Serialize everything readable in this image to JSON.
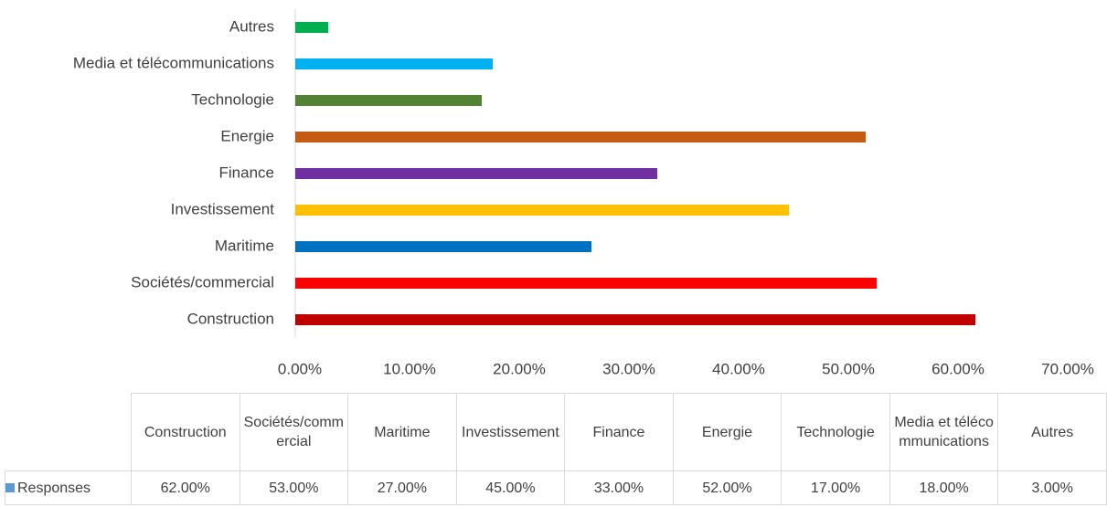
{
  "chart_data": {
    "type": "bar",
    "orientation": "horizontal",
    "categories": [
      "Construction",
      "Sociétés/commercial",
      "Maritime",
      "Investissement",
      "Finance",
      "Energie",
      "Technologie",
      "Media et télécommunications",
      "Autres"
    ],
    "series": [
      {
        "name": "Responses",
        "color": "#5b9bd5",
        "values": [
          62,
          53,
          27,
          45,
          33,
          52,
          17,
          18,
          3
        ],
        "value_labels": [
          "62.00%",
          "53.00%",
          "27.00%",
          "45.00%",
          "33.00%",
          "52.00%",
          "17.00%",
          "18.00%",
          "3.00%"
        ],
        "colors": [
          "#c00000",
          "#ff0000",
          "#0070c0",
          "#ffc000",
          "#7030a0",
          "#c55a11",
          "#548235",
          "#00b0f0",
          "#00b050"
        ]
      }
    ],
    "xlim": [
      0,
      70
    ],
    "xticks": [
      {
        "value": 0,
        "label": "0.00%"
      },
      {
        "value": 10,
        "label": "10.00%"
      },
      {
        "value": 20,
        "label": "20.00%"
      },
      {
        "value": 30,
        "label": "30.00%"
      },
      {
        "value": 40,
        "label": "40.00%"
      },
      {
        "value": 50,
        "label": "50.00%"
      },
      {
        "value": 60,
        "label": "60.00%"
      },
      {
        "value": 70,
        "label": "70.00%"
      }
    ],
    "grid": false
  }
}
